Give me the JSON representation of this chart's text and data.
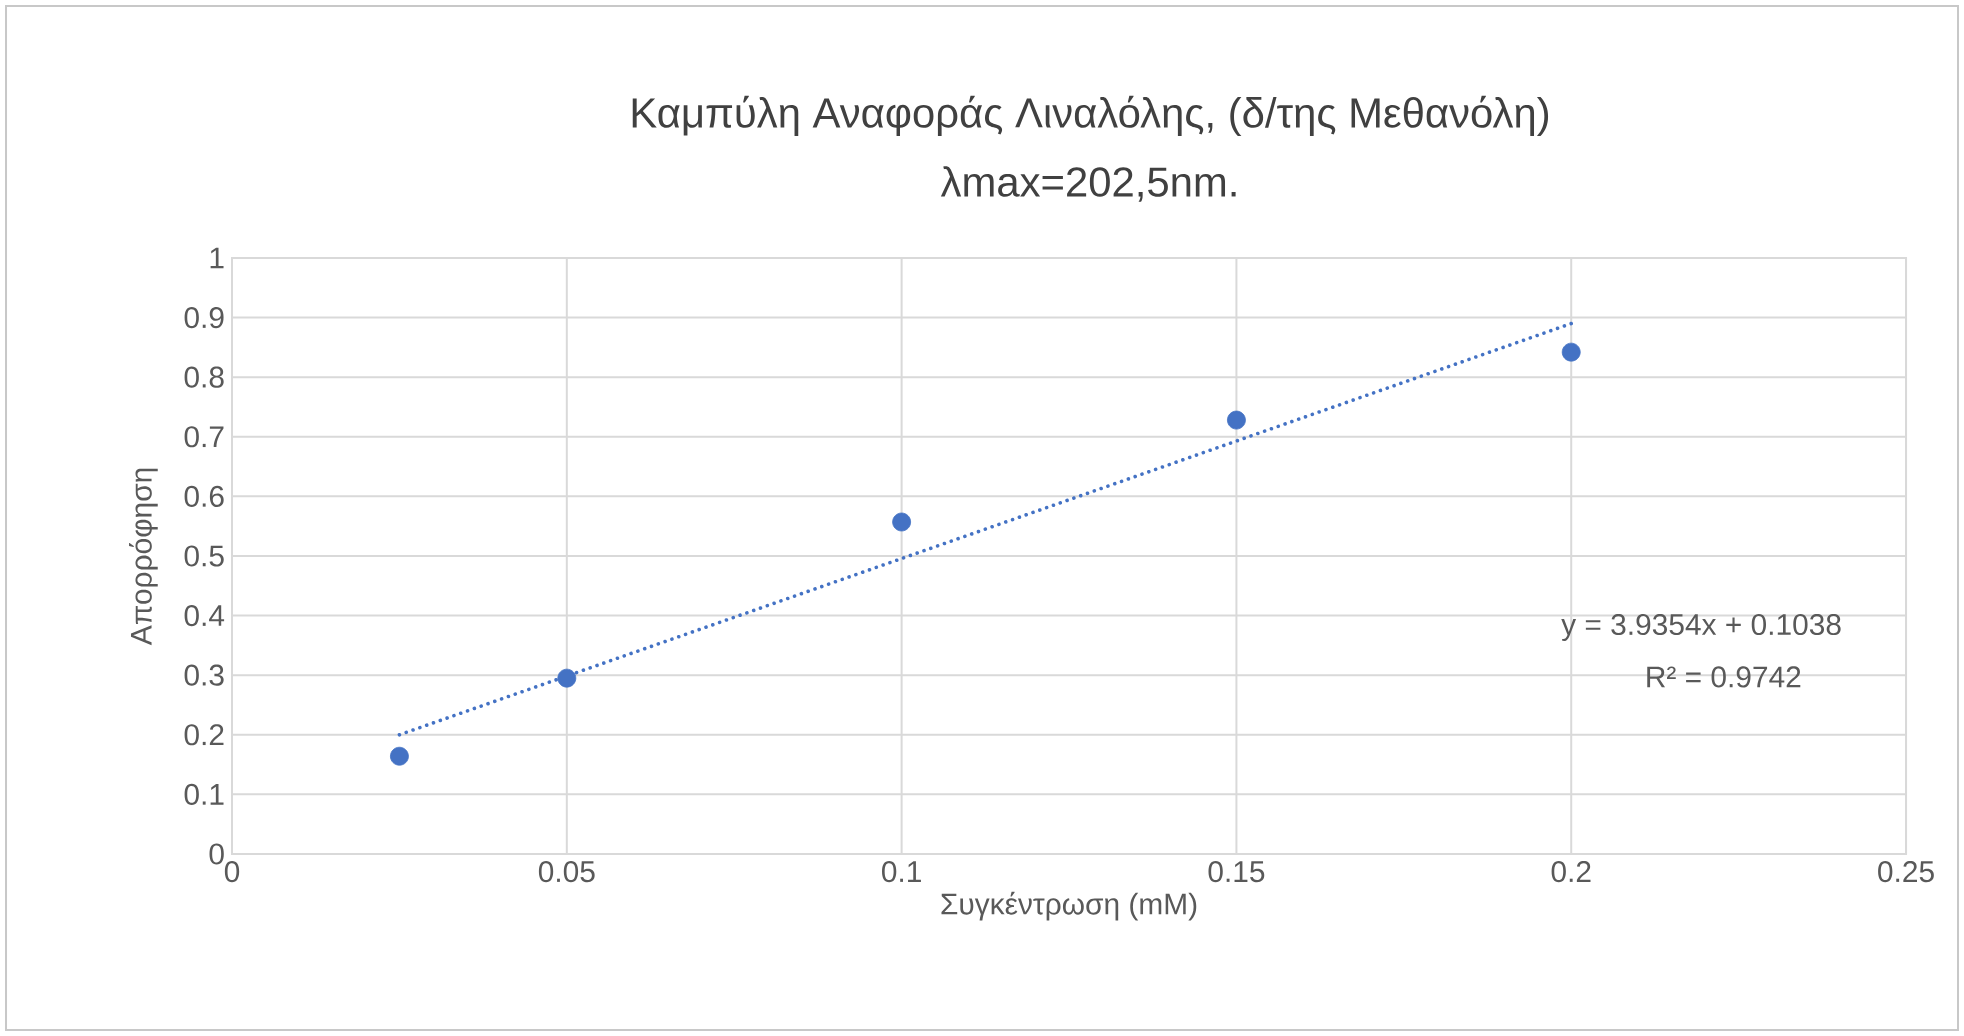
{
  "chart_data": {
    "type": "scatter",
    "title": "Καμπύλη Αναφοράς Λιναλόλης, (δ/της Μεθανόλη)",
    "subtitle": "λmax=202,5nm.",
    "xlabel": "Συγκέντρωση (mM)",
    "ylabel": "Απορρόφηση",
    "x": [
      0.025,
      0.05,
      0.1,
      0.15,
      0.2
    ],
    "series": [
      {
        "type": "scatter",
        "color": "#4472c4",
        "marker": "circle",
        "values": [
          0.164,
          0.295,
          0.557,
          0.728,
          0.842
        ]
      },
      {
        "type": "line",
        "color": "#4472c4",
        "line_style": "dotted",
        "marker": "none",
        "x": [
          0.025,
          0.2
        ],
        "values": [
          0.2,
          0.89
        ]
      }
    ],
    "annotations": [
      "y = 3.9354x + 0.1038",
      "R² = 0.9742"
    ],
    "xlim": [
      0,
      0.25
    ],
    "xticks": [
      0,
      0.05,
      0.1,
      0.15,
      0.2,
      0.25
    ],
    "ylim": [
      0,
      1
    ],
    "yticks": [
      0,
      0.1,
      0.2,
      0.3,
      0.4,
      0.5,
      0.6,
      0.7,
      0.8,
      0.9,
      1
    ],
    "grid": true
  }
}
